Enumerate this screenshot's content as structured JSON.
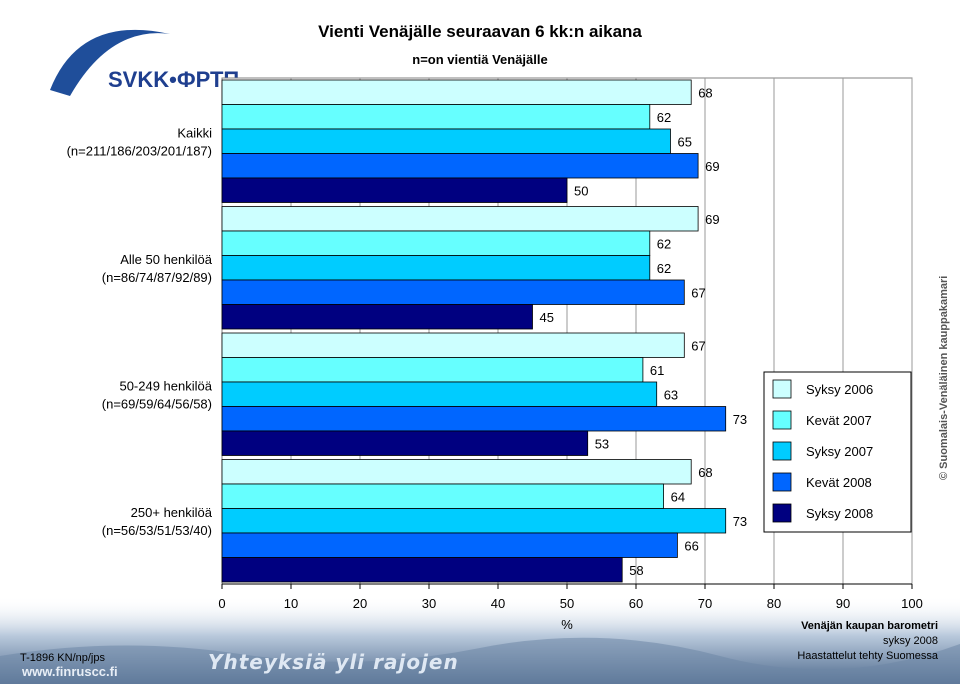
{
  "logo": {
    "text": "SVKK•ФРТП"
  },
  "chart_data": {
    "type": "bar",
    "orientation": "horizontal",
    "title": "Vienti Venäjälle seuraavan 6 kk:n aikana",
    "subtitle": "n=on vientiä Venäjälle",
    "xlabel": "%",
    "xlim": [
      0,
      100
    ],
    "xticks": [
      0,
      10,
      20,
      30,
      40,
      50,
      60,
      70,
      80,
      90,
      100
    ],
    "categories": [
      {
        "line1": "Kaikki",
        "line2": "(n=211/186/203/201/187)"
      },
      {
        "line1": "Alle 50 henkilöä",
        "line2": "(n=86/74/87/92/89)"
      },
      {
        "line1": "50-249 henkilöä",
        "line2": "(n=69/59/64/56/58)"
      },
      {
        "line1": "250+ henkilöä",
        "line2": "(n=56/53/51/53/40)"
      }
    ],
    "series": [
      {
        "name": "Syksy 2006",
        "color": "#ccffff",
        "values": [
          68,
          69,
          67,
          68
        ]
      },
      {
        "name": "Kevät 2007",
        "color": "#66ffff",
        "values": [
          62,
          62,
          61,
          64
        ]
      },
      {
        "name": "Syksy 2007",
        "color": "#00ccff",
        "values": [
          65,
          62,
          63,
          73
        ]
      },
      {
        "name": "Kevät 2008",
        "color": "#0066ff",
        "values": [
          69,
          67,
          73,
          66
        ]
      },
      {
        "name": "Syksy 2008",
        "color": "#000080",
        "values": [
          50,
          45,
          53,
          58
        ]
      }
    ],
    "grid": true,
    "legend_position": "right"
  },
  "footer": {
    "copyright": "© Suomalais-Venäläinen kauppakamari",
    "barometer_title": "Venäjän kaupan barometri",
    "barometer_season": "syksy 2008",
    "barometer_note": "Haastattelut tehty Suomessa",
    "code": "T-1896 KN/np/jps",
    "slogan": "Yhteyksiä yli rajojen",
    "website": "www.finruscc.fi"
  }
}
